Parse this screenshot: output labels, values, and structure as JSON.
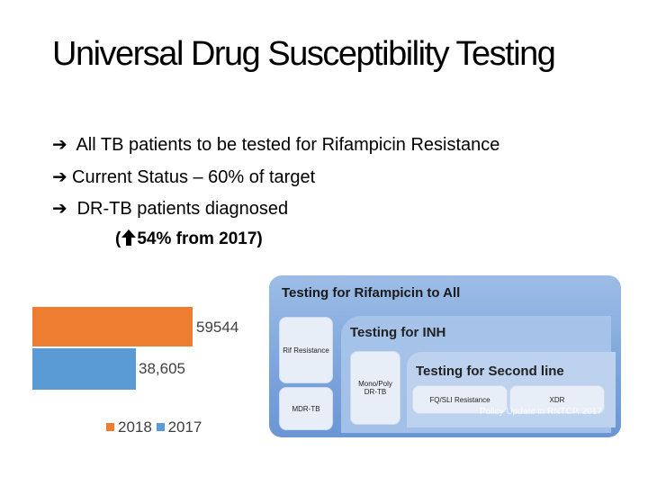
{
  "slide": {
    "title": "Universal Drug Susceptibility Testing",
    "bullets": [
      "All TB patients to be tested for Rifampicin Resistance",
      "Current Status – 60% of target",
      "DR-TB patients diagnosed"
    ],
    "sub_bullet_open": "(",
    "sub_bullet_text": "54% from 2017)"
  },
  "chart_data": {
    "type": "bar",
    "orientation": "horizontal",
    "categories": [
      "2018",
      "2017"
    ],
    "values": [
      59544,
      38605
    ],
    "value_labels": [
      "59544",
      "38,605"
    ],
    "legend": [
      "2018",
      "2017"
    ],
    "legend_placement": "bottom",
    "colors": {
      "2018": "#ed7d31",
      "2017": "#5b9bd5"
    }
  },
  "diagram": {
    "title": "Testing for Rifampicin to All",
    "rif_box": "Rif Resistance",
    "mdr_box": "MDR-TB",
    "inh_title": "Testing for INH",
    "mono_poly_box": "Mono/Poly DR-TB",
    "second_line_title": "Testing for Second line",
    "fq_box": "FQ/SLI Resistance",
    "xdr_box": "XDR",
    "footer": "Policy Update in RNTCP, 2017"
  }
}
